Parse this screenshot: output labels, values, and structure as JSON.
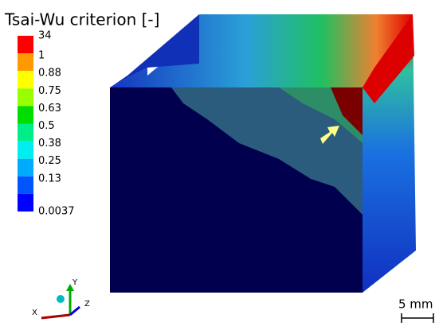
{
  "legend": {
    "title": "Tsai-Wu criterion [-]",
    "labels": [
      "34",
      "1",
      "0.88",
      "0.75",
      "0.63",
      "0.5",
      "0.38",
      "0.25",
      "0.13",
      "0.0037"
    ],
    "colors": [
      "#ff0000",
      "#ff9900",
      "#ffff00",
      "#99ff00",
      "#00dd00",
      "#00ee88",
      "#00eeee",
      "#00aaff",
      "#0055ff",
      "#0000ff"
    ]
  },
  "triad": {
    "x": "X",
    "y": "Y",
    "z": "Z"
  },
  "scale_bar": "5 mm"
}
